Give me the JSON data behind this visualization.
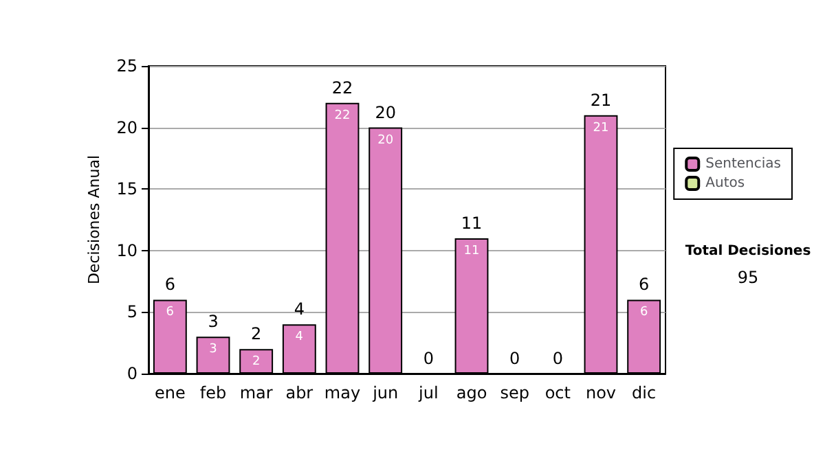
{
  "chart_data": {
    "type": "bar",
    "ylabel": "Decisiones Anual",
    "categories": [
      "ene",
      "feb",
      "mar",
      "abr",
      "may",
      "jun",
      "jul",
      "ago",
      "sep",
      "oct",
      "nov",
      "dic"
    ],
    "series": [
      {
        "name": "Sentencias",
        "color": "#df80c0",
        "values": [
          6,
          3,
          2,
          4,
          22,
          20,
          0,
          11,
          0,
          0,
          21,
          6
        ],
        "value_labels": [
          "6",
          "3",
          "2",
          "4",
          "22",
          "20",
          null,
          "11",
          null,
          null,
          "21",
          "6"
        ]
      },
      {
        "name": "Autos",
        "color": "#d4e89c",
        "values": [
          0,
          0,
          0,
          0,
          0,
          0,
          0,
          0,
          0,
          0,
          0,
          0
        ]
      }
    ],
    "stacked": true,
    "totals": [
      "6",
      "3",
      "2",
      "4",
      "22",
      "20",
      "0",
      "11",
      "0",
      "0",
      "21",
      "6"
    ],
    "ylim": [
      0,
      25
    ],
    "yticks": [
      0,
      5,
      10,
      15,
      20,
      25
    ],
    "grid": "y",
    "legend": "right",
    "annotations": [
      "Total Decisiones",
      "95"
    ]
  }
}
